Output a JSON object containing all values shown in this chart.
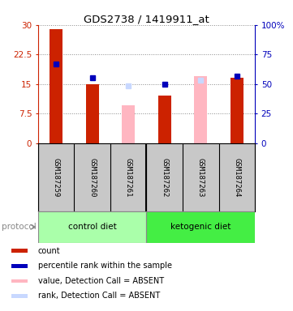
{
  "title": "GDS2738 / 1419911_at",
  "samples": [
    "GSM187259",
    "GSM187260",
    "GSM187261",
    "GSM187262",
    "GSM187263",
    "GSM187264"
  ],
  "red_bars": [
    29.0,
    15.0,
    null,
    12.0,
    null,
    16.5
  ],
  "pink_bars": [
    null,
    null,
    9.5,
    null,
    17.0,
    null
  ],
  "blue_squares": [
    20.0,
    16.5,
    null,
    15.0,
    null,
    17.0
  ],
  "light_blue_squares": [
    null,
    null,
    14.5,
    null,
    16.0,
    null
  ],
  "ylim_left": [
    0,
    30
  ],
  "ylim_right": [
    0,
    100
  ],
  "yticks_left": [
    0,
    7.5,
    15,
    22.5,
    30
  ],
  "ytick_labels_left": [
    "0",
    "7.5",
    "15",
    "22.5",
    "30"
  ],
  "yticks_right_vals": [
    0,
    25,
    50,
    75,
    100
  ],
  "ytick_labels_right": [
    "0",
    "25",
    "50",
    "75",
    "100%"
  ],
  "bar_width": 0.35,
  "left_axis_color": "#CC2200",
  "right_axis_color": "#0000BB",
  "grid_color": "#888888",
  "bg_color": "#FFFFFF",
  "protocol_label": "protocol",
  "group_names": [
    "control diet",
    "ketogenic diet"
  ],
  "group_colors": [
    "#AAFFAA",
    "#44EE44"
  ],
  "group_ranges": [
    [
      0,
      2
    ],
    [
      3,
      5
    ]
  ],
  "sample_bg_color": "#C8C8C8",
  "legend_items": [
    {
      "color": "#CC2200",
      "label": "count"
    },
    {
      "color": "#0000BB",
      "label": "percentile rank within the sample"
    },
    {
      "color": "#FFB6C1",
      "label": "value, Detection Call = ABSENT"
    },
    {
      "color": "#C8D8FF",
      "label": "rank, Detection Call = ABSENT"
    }
  ]
}
